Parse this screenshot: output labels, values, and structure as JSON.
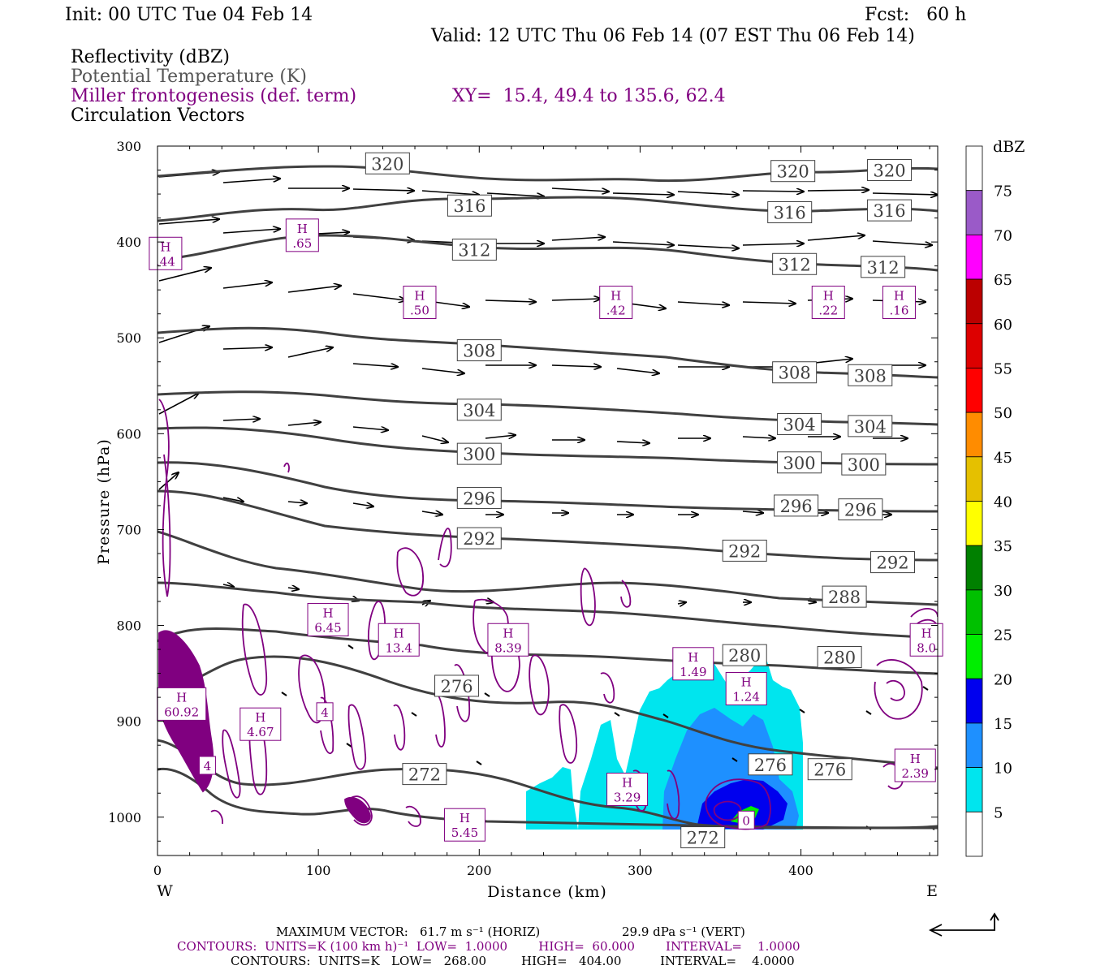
{
  "header": {
    "init": "Init: 00 UTC Tue 04 Feb 14",
    "fcst": "Fcst:   60 h",
    "valid": "Valid: 12 UTC Thu 06 Feb 14 (07 EST Thu 06 Feb 14)",
    "field1": "Reflectivity (dBZ)",
    "field2": "Potential Temperature (K)",
    "field3": "Miller frontogenesis (def. term)",
    "xy": "XY=  15.4, 49.4 to 135.6, 62.4",
    "field4": "Circulation Vectors"
  },
  "colors": {
    "theta": "#404040",
    "frontogenesis": "#800080",
    "vectors": "#000000"
  },
  "chart_data": {
    "type": "cross-section",
    "xlabel": "Distance (km)",
    "ylabel": "Pressure (hPa)",
    "xlim": [
      0,
      485
    ],
    "ylim": [
      1040,
      300
    ],
    "x_ticks": [
      0,
      100,
      200,
      300,
      400
    ],
    "y_ticks": [
      300,
      400,
      500,
      600,
      700,
      800,
      900,
      1000
    ],
    "x_end_labels": {
      "left": "W",
      "right": "E"
    },
    "colorbar": {
      "title": "dBZ",
      "levels": [
        5,
        10,
        15,
        20,
        25,
        30,
        35,
        40,
        45,
        50,
        55,
        60,
        65,
        70,
        75
      ],
      "colors": [
        "#ffffff",
        "#00e5ee",
        "#1e90ff",
        "#0000ee",
        "#00ee00",
        "#00c000",
        "#008000",
        "#ffff00",
        "#e5c000",
        "#ff8c00",
        "#ff0000",
        "#dd0000",
        "#bb0000",
        "#ff00ff",
        "#9a5ac8",
        "#ffffff"
      ]
    },
    "theta_labels": [
      {
        "text": "320",
        "x": 143,
        "p": 318
      },
      {
        "text": "320",
        "x": 395,
        "p": 326
      },
      {
        "text": "320",
        "x": 455,
        "p": 325
      },
      {
        "text": "316",
        "x": 194,
        "p": 362
      },
      {
        "text": "316",
        "x": 393,
        "p": 369
      },
      {
        "text": "316",
        "x": 455,
        "p": 367
      },
      {
        "text": "312",
        "x": 197,
        "p": 408
      },
      {
        "text": "312",
        "x": 396,
        "p": 423
      },
      {
        "text": "312",
        "x": 451,
        "p": 426
      },
      {
        "text": "308",
        "x": 200,
        "p": 513
      },
      {
        "text": "308",
        "x": 396,
        "p": 536
      },
      {
        "text": "308",
        "x": 443,
        "p": 539
      },
      {
        "text": "304",
        "x": 200,
        "p": 575
      },
      {
        "text": "304",
        "x": 399,
        "p": 590
      },
      {
        "text": "304",
        "x": 443,
        "p": 592
      },
      {
        "text": "300",
        "x": 200,
        "p": 621
      },
      {
        "text": "300",
        "x": 399,
        "p": 630
      },
      {
        "text": "300",
        "x": 439,
        "p": 632
      },
      {
        "text": "296",
        "x": 200,
        "p": 667
      },
      {
        "text": "296",
        "x": 397,
        "p": 675
      },
      {
        "text": "296",
        "x": 437,
        "p": 679
      },
      {
        "text": "292",
        "x": 200,
        "p": 709
      },
      {
        "text": "292",
        "x": 365,
        "p": 722
      },
      {
        "text": "292",
        "x": 457,
        "p": 734
      },
      {
        "text": "288",
        "x": 427,
        "p": 770
      },
      {
        "text": "280",
        "x": 365,
        "p": 831
      },
      {
        "text": "280",
        "x": 424,
        "p": 833
      },
      {
        "text": "276",
        "x": 186,
        "p": 863
      },
      {
        "text": "276",
        "x": 381,
        "p": 945
      },
      {
        "text": "276",
        "x": 418,
        "p": 950
      },
      {
        "text": "272",
        "x": 166,
        "p": 955
      },
      {
        "text": "272",
        "x": 339,
        "p": 1021
      }
    ],
    "frontogenesis_maxima": [
      {
        "label": "H",
        "value": ".44",
        "x": 5,
        "p": 412
      },
      {
        "label": "H",
        "value": ".65",
        "x": 90,
        "p": 393
      },
      {
        "label": "H",
        "value": ".50",
        "x": 163,
        "p": 463
      },
      {
        "label": "H",
        "value": ".42",
        "x": 285,
        "p": 463
      },
      {
        "label": "H",
        "value": ".22",
        "x": 417,
        "p": 463
      },
      {
        "label": "H",
        "value": ".16",
        "x": 461,
        "p": 463
      },
      {
        "label": "H",
        "value": "6.45",
        "x": 106,
        "p": 794
      },
      {
        "label": "H",
        "value": "13.4",
        "x": 150,
        "p": 815
      },
      {
        "label": "H",
        "value": "8.39",
        "x": 218,
        "p": 815
      },
      {
        "label": "H",
        "value": "1.49",
        "x": 333,
        "p": 840
      },
      {
        "label": "H",
        "value": "1.24",
        "x": 366,
        "p": 866
      },
      {
        "label": "H",
        "value": "8.0",
        "x": 478,
        "p": 815
      },
      {
        "label": "H",
        "value": "60.92",
        "x": 15,
        "p": 882
      },
      {
        "label": "H",
        "value": "4.67",
        "x": 64,
        "p": 903
      },
      {
        "label": "H",
        "value": "3.29",
        "x": 292,
        "p": 971
      },
      {
        "label": "H",
        "value": "2.39",
        "x": 471,
        "p": 946
      },
      {
        "label": "H",
        "value": "5.45",
        "x": 191,
        "p": 1008
      }
    ],
    "frontogenesis_inline_labels": [
      {
        "text": "4",
        "x": 31,
        "p": 946
      },
      {
        "text": "4",
        "x": 104,
        "p": 890
      },
      {
        "text": "0",
        "x": 366,
        "p": 1003
      }
    ]
  },
  "footer": {
    "max_vector_label": "MAXIMUM VECTOR:",
    "max_vector_horiz": "61.7 m s⁻¹ (HORIZ)",
    "max_vector_vert": "29.9 dPa s⁻¹ (VERT)",
    "contours1": "CONTOURS:  UNITS=K (100 km h)⁻¹  LOW=  1.0000        HIGH=  60.000        INTERVAL=    1.0000",
    "contours2": "CONTOURS:  UNITS=K   LOW=   268.00         HIGH=   404.00          INTERVAL=    4.0000"
  }
}
